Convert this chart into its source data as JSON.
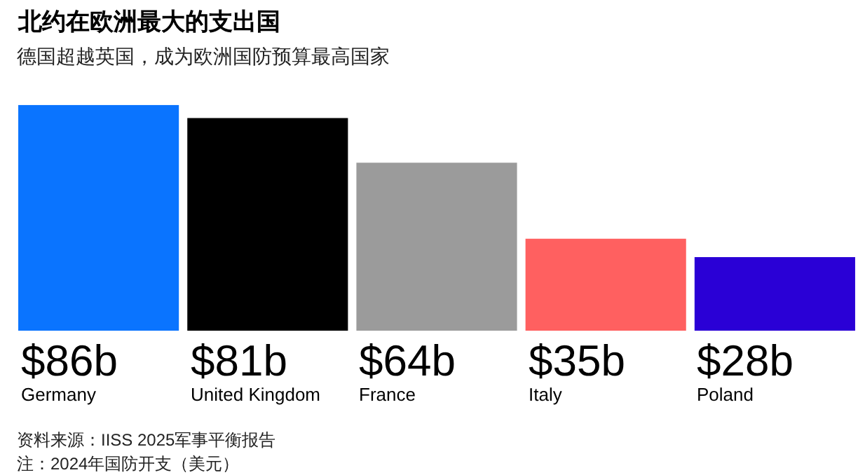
{
  "chart_data": {
    "type": "bar",
    "title": "北约在欧洲最大的支出国",
    "subtitle": "德国超越英国，成为欧洲国防预算最高国家",
    "categories": [
      "Germany",
      "United Kingdom",
      "France",
      "Italy",
      "Poland"
    ],
    "values": [
      86,
      81,
      64,
      35,
      28
    ],
    "colors": [
      "#0a74ff",
      "#000000",
      "#9b9b9b",
      "#ff6060",
      "#2a00d6"
    ],
    "value_labels": [
      "$86b",
      "$81b",
      "$64b",
      "$35b",
      "$28b"
    ],
    "annotations": [
      "资料来源：IISS 2025军事平衡报告",
      "注：2024年国防开支（美元）"
    ],
    "ylim": [
      0,
      86
    ],
    "tick_labels": false
  }
}
